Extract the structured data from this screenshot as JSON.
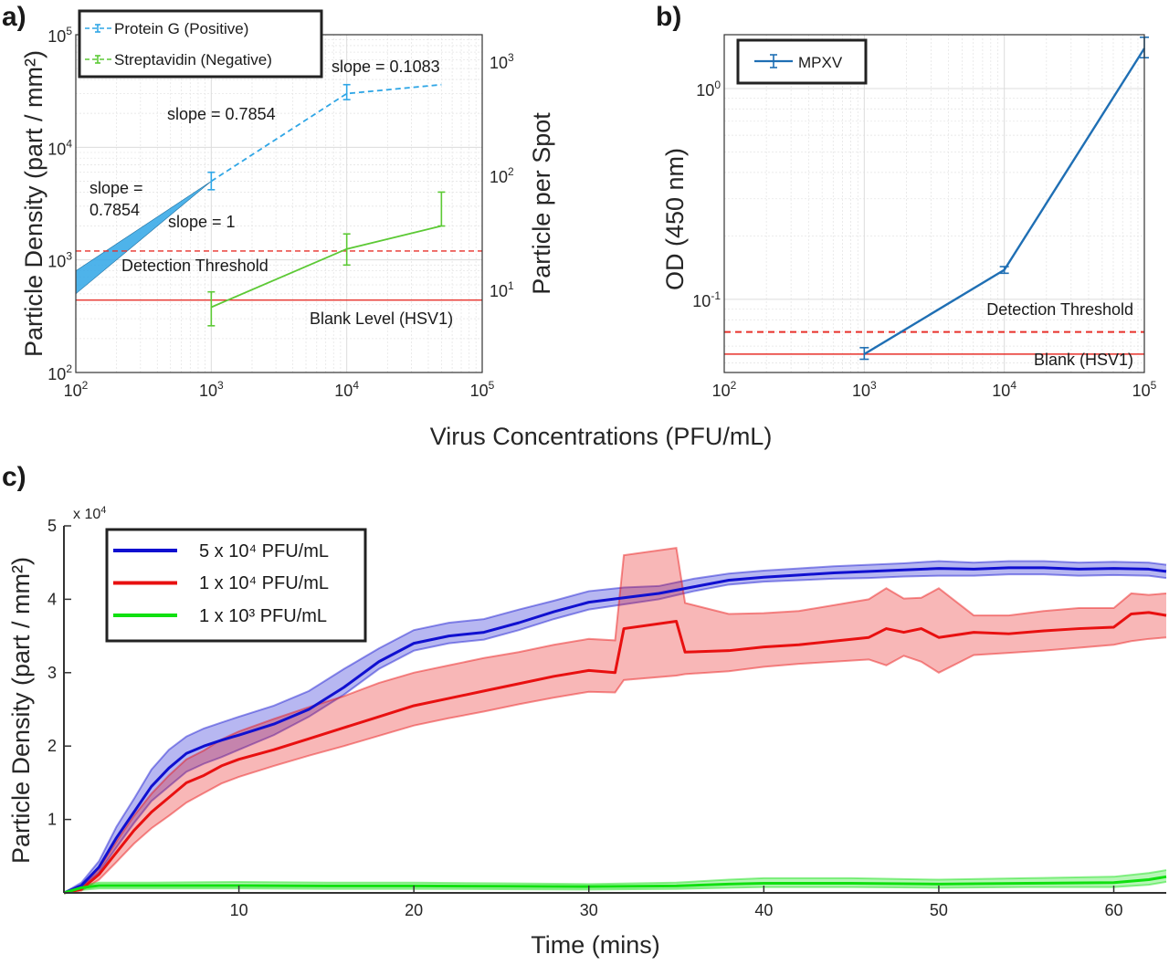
{
  "panels": {
    "a": {
      "label": "a)"
    },
    "b": {
      "label": "b)"
    },
    "c": {
      "label": "c)"
    }
  },
  "shared": {
    "xlabel": "Virus Concentrations (PFU/mL)"
  },
  "colors": {
    "protein_g": "#2fa6e6",
    "streptavidin": "#5cc935",
    "threshold": "#e8302a",
    "mpxv": "#1f6fb4",
    "blue": "#1010d0",
    "red": "#e81010",
    "green": "#10e010"
  },
  "chart_data": [
    {
      "id": "a",
      "type": "line",
      "xscale": "log",
      "yscale": "log",
      "xlim": [
        100,
        100000
      ],
      "ylim": [
        100,
        100000
      ],
      "x_ticks": [
        {
          "base": "10",
          "exp": "2"
        },
        {
          "base": "10",
          "exp": "3"
        },
        {
          "base": "10",
          "exp": "4"
        },
        {
          "base": "10",
          "exp": "5"
        }
      ],
      "y_ticks": [
        {
          "base": "10",
          "exp": "2"
        },
        {
          "base": "10",
          "exp": "3"
        },
        {
          "base": "10",
          "exp": "4"
        },
        {
          "base": "10",
          "exp": "5"
        }
      ],
      "right_y_ticks": [
        {
          "base": "10",
          "exp": "1"
        },
        {
          "base": "10",
          "exp": "2"
        },
        {
          "base": "10",
          "exp": "3"
        }
      ],
      "ylabel": "Particle Density (part / mm²)",
      "ylabel_right": "Particle per Spot",
      "grid": true,
      "legend": "top-left",
      "series": [
        {
          "name": "Protein G (Positive)",
          "style": "dashed",
          "points": [
            {
              "x": 1000,
              "y": 5000,
              "err_low": 4200,
              "err_high": 6000
            },
            {
              "x": 10000,
              "y": 30000,
              "err_low": 26500,
              "err_high": 36000
            },
            {
              "x": 50000,
              "y": 36000
            }
          ]
        },
        {
          "name": "Streptavidin (Negative)",
          "style": "solid",
          "points": [
            {
              "x": 1000,
              "y": 380,
              "err_low": 260,
              "err_high": 520
            },
            {
              "x": 10000,
              "y": 1250,
              "err_low": 900,
              "err_high": 1700
            },
            {
              "x": 50000,
              "y": 2000,
              "err_low": 2000,
              "err_high": 4000
            }
          ]
        }
      ],
      "threshold": {
        "y": 1200,
        "label": "Detection Threshold"
      },
      "blank": {
        "y": 440,
        "label": "Blank Level (HSV1)"
      },
      "fit_wedge": {
        "x_from": 100,
        "x_to": 1000,
        "y_at_end": 5000,
        "y_low_start": 500,
        "y_high_start": 800
      },
      "annotations": {
        "slope_top": "slope = 0.1083",
        "slope_mid": "slope = 0.7854",
        "slope_left_1": "slope =",
        "slope_left_2": "0.7854",
        "slope_one": "slope = 1"
      }
    },
    {
      "id": "b",
      "type": "line",
      "xscale": "log",
      "yscale": "log",
      "xlim": [
        100,
        100000
      ],
      "ylim": [
        0.045,
        1.8
      ],
      "x_ticks": [
        {
          "base": "10",
          "exp": "2"
        },
        {
          "base": "10",
          "exp": "3"
        },
        {
          "base": "10",
          "exp": "4"
        },
        {
          "base": "10",
          "exp": "5"
        }
      ],
      "y_ticks": [
        {
          "base": "10",
          "exp": "-1",
          "value": 0.1
        },
        {
          "base": "10",
          "exp": "0",
          "value": 1
        }
      ],
      "ylabel": "OD (450 nm)",
      "grid": true,
      "legend": "top-left",
      "series": [
        {
          "name": "MPXV",
          "points": [
            {
              "x": 1000,
              "y": 0.055,
              "err_low": 0.052,
              "err_high": 0.059
            },
            {
              "x": 10000,
              "y": 0.138,
              "err_low": 0.133,
              "err_high": 0.143
            },
            {
              "x": 100000,
              "y": 1.55,
              "err_low": 1.4,
              "err_high": 1.75
            }
          ]
        }
      ],
      "threshold": {
        "y": 0.07,
        "label": "Detection Threshold"
      },
      "blank": {
        "y": 0.055,
        "label": "Blank (HSV1)"
      }
    },
    {
      "id": "c",
      "type": "area",
      "xlim": [
        0,
        63
      ],
      "ylim": [
        0,
        50000
      ],
      "x_ticks": [
        10,
        20,
        30,
        40,
        50,
        60
      ],
      "y_ticks": [
        1,
        2,
        3,
        4,
        5
      ],
      "y_multiplier": {
        "base": "x 10",
        "exp": "4"
      },
      "xlabel": "Time (mins)",
      "ylabel": "Particle Density (part / mm²)",
      "legend": "top-left",
      "series": [
        {
          "name": "5 x 10⁴ PFU/mL",
          "color_key": "blue",
          "x": [
            0,
            1,
            2,
            3,
            4,
            5,
            6,
            7,
            8,
            9,
            10,
            12,
            14,
            16,
            18,
            20,
            22,
            24,
            26,
            28,
            30,
            32,
            34,
            36,
            38,
            40,
            42,
            44,
            46,
            48,
            50,
            52,
            54,
            56,
            58,
            60,
            62,
            63
          ],
          "mean": [
            0,
            1000,
            3500,
            7500,
            11000,
            14500,
            17000,
            19000,
            20000,
            20800,
            21500,
            23000,
            25000,
            28000,
            31500,
            34000,
            35000,
            35500,
            36800,
            38300,
            39600,
            40200,
            40800,
            41700,
            42600,
            43000,
            43300,
            43600,
            43800,
            44000,
            44200,
            44100,
            44300,
            44300,
            44100,
            44200,
            44100,
            43800
          ],
          "low": [
            0,
            700,
            2800,
            6200,
            9500,
            12500,
            14500,
            16500,
            17600,
            18500,
            19500,
            21500,
            24000,
            27000,
            30500,
            33000,
            34000,
            34500,
            35800,
            37300,
            38600,
            39300,
            40000,
            41100,
            42000,
            42400,
            42600,
            42800,
            42900,
            43100,
            43200,
            43200,
            43400,
            43400,
            43200,
            43300,
            43200,
            42900
          ],
          "high": [
            0,
            1400,
            4300,
            9000,
            12800,
            16800,
            19500,
            21300,
            22400,
            23200,
            24000,
            25500,
            27500,
            30500,
            33300,
            35800,
            36800,
            37300,
            38600,
            39800,
            41100,
            41600,
            41800,
            42800,
            43500,
            43900,
            44200,
            44500,
            44700,
            44900,
            45200,
            45000,
            45200,
            45200,
            45000,
            45100,
            45000,
            44700
          ]
        },
        {
          "name": "1 x 10⁴ PFU/mL",
          "color_key": "red",
          "x": [
            0,
            1,
            2,
            3,
            4,
            5,
            6,
            7,
            8,
            9,
            10,
            12,
            14,
            16,
            18,
            20,
            22,
            24,
            26,
            28,
            30,
            31.5,
            32,
            35,
            35.5,
            38,
            40,
            42,
            44,
            46,
            47,
            48,
            49,
            50,
            52,
            54,
            56,
            58,
            60,
            61,
            62,
            63
          ],
          "mean": [
            0,
            500,
            2500,
            5500,
            8500,
            11000,
            13000,
            15000,
            16000,
            17300,
            18200,
            19500,
            21000,
            22500,
            24000,
            25500,
            26500,
            27500,
            28500,
            29500,
            30300,
            30000,
            36000,
            37000,
            32800,
            33000,
            33500,
            33800,
            34300,
            34800,
            36000,
            35500,
            36000,
            34800,
            35500,
            35300,
            35700,
            36000,
            36200,
            38000,
            38200,
            37800
          ],
          "low": [
            0,
            300,
            1800,
            4200,
            6700,
            8800,
            10500,
            12300,
            13600,
            14900,
            15800,
            17300,
            18700,
            20000,
            21400,
            22800,
            23800,
            24700,
            25700,
            26600,
            27400,
            27300,
            29000,
            29600,
            29800,
            30200,
            30800,
            31200,
            31500,
            31800,
            31000,
            32300,
            31500,
            30000,
            32400,
            32700,
            33000,
            33400,
            33800,
            34300,
            34600,
            34800
          ],
          "high": [
            0,
            800,
            3300,
            7000,
            10500,
            13500,
            16000,
            18200,
            19400,
            20900,
            22000,
            23700,
            25300,
            26800,
            28600,
            30000,
            31000,
            32000,
            32800,
            33800,
            34600,
            34400,
            46000,
            47000,
            39500,
            38000,
            38100,
            38400,
            39200,
            40000,
            41500,
            40100,
            40200,
            41500,
            37800,
            37800,
            38400,
            38800,
            38800,
            40800,
            40600,
            40800
          ]
        },
        {
          "name": "1 x 10³ PFU/mL",
          "color_key": "green",
          "x": [
            0,
            1,
            2,
            5,
            10,
            15,
            20,
            25,
            30,
            35,
            38,
            40,
            45,
            50,
            55,
            60,
            62,
            63
          ],
          "mean": [
            0,
            700,
            1000,
            1000,
            1000,
            950,
            950,
            900,
            850,
            950,
            1200,
            1300,
            1300,
            1200,
            1300,
            1400,
            1800,
            2200
          ],
          "low": [
            0,
            400,
            600,
            600,
            600,
            550,
            550,
            500,
            450,
            550,
            700,
            800,
            800,
            700,
            800,
            800,
            1100,
            1500
          ],
          "high": [
            0,
            1000,
            1400,
            1400,
            1500,
            1400,
            1400,
            1300,
            1200,
            1400,
            1800,
            2000,
            2000,
            1800,
            2000,
            2200,
            2700,
            3100
          ]
        }
      ]
    }
  ]
}
